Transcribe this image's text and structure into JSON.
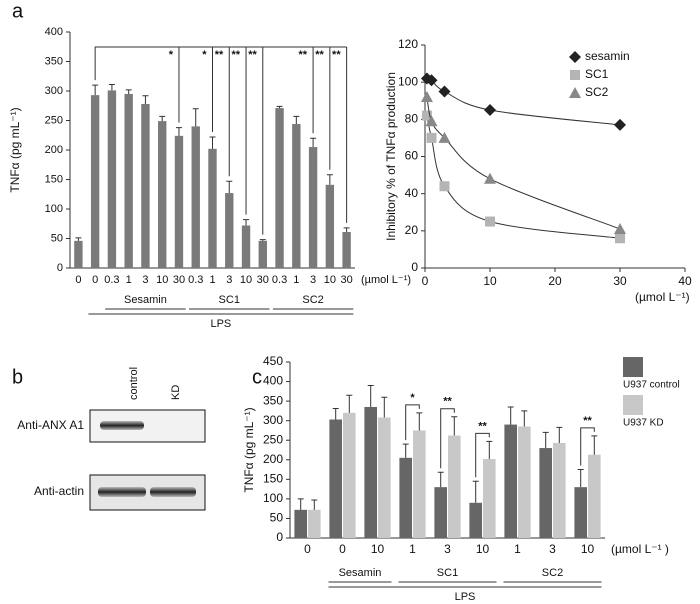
{
  "chart_data": [
    {
      "type": "bar",
      "panel": "a",
      "ylabel": "TNFα (pg mL⁻¹)",
      "unit_label": "(µmol L⁻¹)",
      "categories": [
        "0",
        "0",
        "0.3",
        "1",
        "3",
        "10",
        "30",
        "0.3",
        "1",
        "3",
        "10",
        "30",
        "0.3",
        "1",
        "3",
        "10",
        "30"
      ],
      "values": [
        46,
        293,
        301,
        295,
        278,
        249,
        224,
        240,
        202,
        127,
        72,
        46,
        271,
        244,
        205,
        141,
        61
      ],
      "errors": [
        5,
        17,
        10,
        7,
        14,
        8,
        14,
        30,
        20,
        20,
        10,
        2,
        3,
        13,
        15,
        17,
        7
      ],
      "color": "#7a7a7a",
      "significance": [
        null,
        null,
        null,
        null,
        null,
        null,
        "*",
        null,
        "*",
        "**",
        "**",
        "**",
        null,
        null,
        "**",
        "**",
        "**"
      ],
      "group": [
        null,
        null,
        "Sesamin",
        "Sesamin",
        "Sesamin",
        "Sesamin",
        "Sesamin",
        "SC1",
        "SC1",
        "SC1",
        "SC1",
        "SC1",
        "SC2",
        "SC2",
        "SC2",
        "SC2",
        "SC2"
      ],
      "outer_group": [
        null,
        "LPS",
        "LPS",
        "LPS",
        "LPS",
        "LPS",
        "LPS",
        "LPS",
        "LPS",
        "LPS",
        "LPS",
        "LPS",
        "LPS",
        "LPS",
        "LPS",
        "LPS",
        "LPS"
      ],
      "ylim": [
        0,
        400
      ],
      "yticks": [
        0,
        50,
        100,
        150,
        200,
        250,
        300,
        350,
        400
      ]
    },
    {
      "type": "scatter",
      "ylabel": "Inhibitory % of TNFα production",
      "xlabel": "(µmol L⁻¹)",
      "x": [
        0.3,
        1,
        3,
        10,
        30
      ],
      "series": [
        {
          "name": "sesamin",
          "color": "#222222",
          "marker": "diamond",
          "values": [
            102,
            101,
            95,
            85,
            77
          ]
        },
        {
          "name": "SC1",
          "color": "#b4b4b4",
          "marker": "square",
          "values": [
            82,
            70,
            44,
            25,
            16
          ]
        },
        {
          "name": "SC2",
          "color": "#888888",
          "marker": "triangle",
          "values": [
            92,
            79,
            70,
            48,
            21
          ]
        }
      ],
      "xlim": [
        0,
        40
      ],
      "xticks": [
        0,
        10,
        20,
        30,
        40
      ],
      "ylim": [
        0,
        120
      ],
      "yticks": [
        0,
        20,
        40,
        60,
        80,
        100,
        120
      ],
      "legend": "top-right"
    },
    {
      "type": "bar",
      "panel": "c",
      "ylabel": "TNFα (pg mL⁻¹)",
      "unit_label": "(µmol L⁻¹ )",
      "categories": [
        "0",
        "0",
        "10",
        "1",
        "3",
        "10",
        "1",
        "3",
        "10"
      ],
      "series": [
        {
          "name": "U937 control",
          "color": "#666666",
          "values": [
            72,
            303,
            335,
            205,
            130,
            90,
            290,
            230,
            130
          ],
          "errors": [
            28,
            28,
            55,
            35,
            38,
            55,
            45,
            40,
            45
          ]
        },
        {
          "name": "U937 KD",
          "color": "#c8c8c8",
          "values": [
            72,
            320,
            308,
            275,
            262,
            202,
            285,
            243,
            213
          ],
          "errors": [
            25,
            45,
            52,
            45,
            48,
            45,
            40,
            40,
            48
          ]
        }
      ],
      "significance": [
        null,
        null,
        null,
        "*",
        "**",
        "**",
        null,
        null,
        "**"
      ],
      "group": [
        null,
        "Sesamin",
        "Sesamin",
        "SC1",
        "SC1",
        "SC1",
        "SC2",
        "SC2",
        "SC2"
      ],
      "outer_group": [
        null,
        "LPS",
        "LPS",
        "LPS",
        "LPS",
        "LPS",
        "LPS",
        "LPS",
        "LPS"
      ],
      "ylim": [
        0,
        450
      ],
      "yticks": [
        0,
        50,
        100,
        150,
        200,
        250,
        300,
        350,
        400,
        450
      ],
      "legend": "right"
    }
  ],
  "blot": {
    "panel": "b",
    "lanes": [
      "control",
      "KD"
    ],
    "rows": [
      "Anti-ANX A1",
      "Anti-actin"
    ]
  }
}
